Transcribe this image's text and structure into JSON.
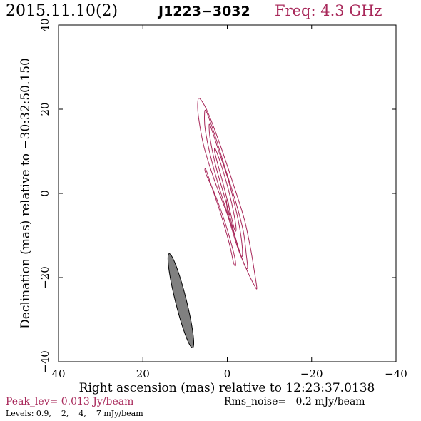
{
  "header": {
    "date": "2015.11.10(2)",
    "source": "J1223−3032",
    "freq": "Freq: 4.3 GHz"
  },
  "footer": {
    "peak": "Peak_lev=  0.013 Jy/beam",
    "rms": "Rms_noise=   0.2 mJy/beam",
    "levels": "Levels: 0.9,    2,    4,    7 mJy/beam"
  },
  "colors": {
    "contour": "#a8285a",
    "header_freq": "#a8285a",
    "peak_text": "#a8285a",
    "beam_fill": "#808080",
    "axes": "#000000"
  },
  "chart_data": {
    "type": "contour",
    "xlabel": "Right ascension (mas) relative to 12:23:37.0138",
    "ylabel": "Declination (mas) relative to −30:32:50.150",
    "xlim": [
      40,
      -40
    ],
    "ylim": [
      -40,
      40
    ],
    "x_ticks": [
      40,
      20,
      0,
      -20,
      -40
    ],
    "y_ticks": [
      -40,
      -20,
      0,
      20,
      40
    ],
    "x_tick_labels": [
      "40",
      "20",
      "0",
      "−20",
      "−40"
    ],
    "y_tick_labels": [
      "−40",
      "−20",
      "0",
      "20",
      "40"
    ],
    "levels_mjy_per_beam": [
      0.9,
      2,
      4,
      7
    ],
    "peak_jy_per_beam": 0.013,
    "rms_noise_mjy_per_beam": 0.2,
    "contours": [
      {
        "level": 0.9,
        "points": [
          [
            6.5,
            22.5
          ],
          [
            4.5,
            19
          ],
          [
            1.5,
            11
          ],
          [
            -1.5,
            2
          ],
          [
            -4,
            -6
          ],
          [
            -5.5,
            -13
          ],
          [
            -6.5,
            -19
          ],
          [
            -7,
            -22.5
          ],
          [
            -6.5,
            -22
          ],
          [
            -5,
            -19
          ],
          [
            -2.5,
            -13
          ],
          [
            0,
            -5
          ],
          [
            3,
            3
          ],
          [
            5.5,
            11
          ],
          [
            6.8,
            18
          ],
          [
            7,
            21.5
          ]
        ]
      },
      {
        "level": 0.9,
        "points": [
          [
            5,
            5.5
          ],
          [
            3.5,
            1
          ],
          [
            1.5,
            -5
          ],
          [
            -0.5,
            -12
          ],
          [
            -1.5,
            -16.5
          ],
          [
            -2,
            -17
          ],
          [
            -1.5,
            -14
          ],
          [
            0.5,
            -7
          ],
          [
            3,
            0
          ],
          [
            4.8,
            4
          ],
          [
            5.3,
            5.5
          ]
        ]
      },
      {
        "level": 2,
        "points": [
          [
            5,
            19.5
          ],
          [
            3,
            14
          ],
          [
            0.5,
            6
          ],
          [
            -2,
            -2
          ],
          [
            -3.8,
            -9
          ],
          [
            -4.5,
            -14.5
          ],
          [
            -4.8,
            -17.5
          ],
          [
            -4.3,
            -17.5
          ],
          [
            -3,
            -14
          ],
          [
            -0.8,
            -7
          ],
          [
            1.8,
            1
          ],
          [
            4,
            9
          ],
          [
            5.2,
            15
          ],
          [
            5.4,
            18.5
          ]
        ]
      },
      {
        "level": 4,
        "points": [
          [
            4,
            16
          ],
          [
            2,
            10
          ],
          [
            -0.3,
            3
          ],
          [
            -2.3,
            -5
          ],
          [
            -3.3,
            -10.5
          ],
          [
            -3.6,
            -14.5
          ],
          [
            -3.1,
            -14.5
          ],
          [
            -1.8,
            -10
          ],
          [
            0.3,
            -2
          ],
          [
            2.6,
            6
          ],
          [
            3.9,
            12
          ],
          [
            4.3,
            15.5
          ]
        ]
      },
      {
        "level": 7,
        "points": [
          [
            2.8,
            10.5
          ],
          [
            1.2,
            6
          ],
          [
            -0.5,
            0
          ],
          [
            -1.6,
            -5
          ],
          [
            -2.1,
            -8.5
          ],
          [
            -1.7,
            -8.5
          ],
          [
            -0.6,
            -4
          ],
          [
            0.9,
            2
          ],
          [
            2.4,
            7.5
          ],
          [
            3,
            10
          ]
        ]
      },
      {
        "level": 7,
        "points": [
          [
            -0.2,
            -2
          ],
          [
            -0.6,
            -4.5
          ],
          [
            -0.3,
            -5
          ],
          [
            0.1,
            -3
          ],
          [
            0.1,
            -1.5
          ]
        ]
      }
    ],
    "beam": {
      "center": [
        11,
        -25.5
      ],
      "major_mas": 23,
      "minor_mas": 2.6,
      "pa_deg": 14
    }
  }
}
